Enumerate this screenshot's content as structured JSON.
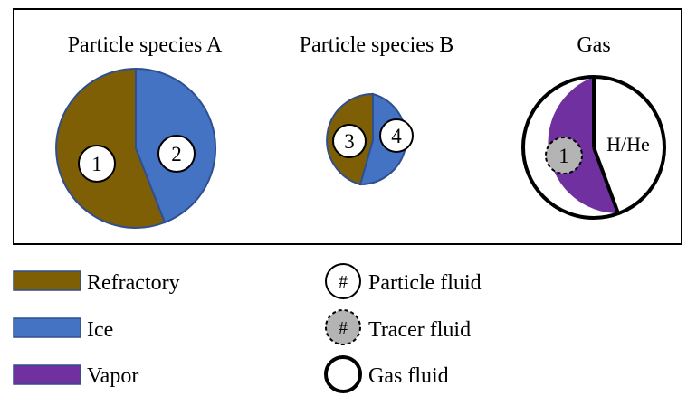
{
  "colors": {
    "refractory": "#7f5f06",
    "ice": "#4473c4",
    "vapor": "#7030a0",
    "edge": "#2f4f8f",
    "tracer": "#b4b4b4",
    "frame": "#000000"
  },
  "species_a": {
    "title": "Particle species A",
    "refractory_label": "1",
    "ice_label": "2"
  },
  "species_b": {
    "title": "Particle species B",
    "refractory_label": "3",
    "ice_label": "4"
  },
  "gas": {
    "title": "Gas",
    "tracer_label": "1",
    "gas_label": "H/He"
  },
  "legend": {
    "refractory": "Refractory",
    "ice": "Ice",
    "vapor": "Vapor",
    "particle_fluid": "Particle fluid",
    "tracer_fluid": "Tracer fluid",
    "gas_fluid": "Gas fluid",
    "hash_symbol": "#"
  }
}
